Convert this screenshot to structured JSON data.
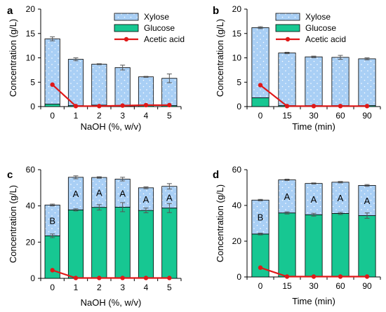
{
  "colors": {
    "xylose_fill": "#a9cff5",
    "xylose_dots": "#ffffff",
    "glucose_fill": "#17c792",
    "acetic_line": "#e01818",
    "bar_edge": "#000000",
    "error_bar": "#555555"
  },
  "chart_data": [
    {
      "type": "bar",
      "panel_letter": "a",
      "stacked": true,
      "categories": [
        "0",
        "1",
        "2",
        "3",
        "4",
        "5"
      ],
      "xlabel": "NaOH (%, w/v)",
      "ylabel": "Concentration (g/L)",
      "ylim": [
        0,
        20
      ],
      "yticks": [
        "0",
        "5",
        "10",
        "15",
        "20"
      ],
      "legend_position": "top-right",
      "series": [
        {
          "name": "Glucose",
          "kind": "bar",
          "values": [
            0.5,
            0.2,
            0.3,
            0.2,
            0.2,
            0.2
          ]
        },
        {
          "name": "Xylose",
          "kind": "bar",
          "values": [
            13.4,
            9.5,
            8.4,
            7.8,
            5.9,
            5.6
          ],
          "total_error": [
            0.4,
            0.3,
            0.1,
            0.5,
            0.1,
            0.9
          ]
        },
        {
          "name": "Acetic acid",
          "kind": "line",
          "values": [
            4.5,
            0.1,
            0.1,
            0.2,
            0.3,
            0.3
          ]
        }
      ],
      "bar_labels": []
    },
    {
      "type": "bar",
      "panel_letter": "b",
      "stacked": true,
      "categories": [
        "0",
        "15",
        "30",
        "60",
        "90"
      ],
      "xlabel": "Time (min)",
      "ylabel": "Concentration (g/L)",
      "ylim": [
        0,
        20
      ],
      "yticks": [
        "0",
        "5",
        "10",
        "15",
        "20"
      ],
      "legend_position": "top-right",
      "series": [
        {
          "name": "Glucose",
          "kind": "bar",
          "values": [
            1.8,
            0.2,
            0.2,
            0.2,
            0.2
          ]
        },
        {
          "name": "Xylose",
          "kind": "bar",
          "values": [
            14.4,
            10.8,
            10.0,
            9.9,
            9.6
          ],
          "total_error": [
            0.2,
            0.15,
            0.15,
            0.4,
            0.2
          ]
        },
        {
          "name": "Acetic acid",
          "kind": "line",
          "values": [
            4.4,
            0.1,
            0.1,
            0.1,
            0.1
          ]
        }
      ],
      "bar_labels": []
    },
    {
      "type": "bar",
      "panel_letter": "c",
      "stacked": true,
      "categories": [
        "0",
        "1",
        "2",
        "3",
        "4",
        "5"
      ],
      "xlabel": "NaOH (%, w/v)",
      "ylabel": "Concentration (g/L)",
      "ylim": [
        0,
        60
      ],
      "yticks": [
        "0",
        "20",
        "40",
        "60"
      ],
      "series": [
        {
          "name": "Glucose",
          "kind": "bar",
          "values": [
            23.5,
            37.8,
            39.2,
            39.3,
            37.5,
            38.8
          ],
          "error": [
            1.0,
            0.6,
            1.5,
            2.5,
            1.3,
            2.5
          ]
        },
        {
          "name": "Xylose",
          "kind": "bar",
          "values": [
            17.0,
            18.0,
            16.5,
            15.5,
            12.5,
            12.0
          ],
          "total_error": [
            0.5,
            0.8,
            0.4,
            1.0,
            0.5,
            1.5
          ]
        },
        {
          "name": "Acetic acid",
          "kind": "line",
          "values": [
            4.5,
            0.2,
            0.2,
            0.2,
            0.2,
            0.2
          ]
        }
      ],
      "bar_labels": [
        "B",
        "A",
        "A",
        "A",
        "A",
        "A"
      ]
    },
    {
      "type": "bar",
      "panel_letter": "d",
      "stacked": true,
      "categories": [
        "0",
        "15",
        "30",
        "60",
        "90"
      ],
      "xlabel": "Time (min)",
      "ylabel": "Concentration (g/L)",
      "ylim": [
        0,
        60
      ],
      "yticks": [
        "0",
        "20",
        "40",
        "60"
      ],
      "series": [
        {
          "name": "Glucose",
          "kind": "bar",
          "values": [
            24.0,
            35.8,
            34.8,
            35.5,
            34.3
          ],
          "error": [
            0.5,
            0.6,
            0.8,
            0.6,
            1.5
          ]
        },
        {
          "name": "Xylose",
          "kind": "bar",
          "values": [
            19.0,
            18.5,
            17.5,
            17.5,
            16.9
          ],
          "total_error": [
            0.4,
            0.4,
            0.3,
            0.4,
            0.5
          ]
        },
        {
          "name": "Acetic acid",
          "kind": "line",
          "values": [
            5.2,
            0.2,
            0.2,
            0.2,
            0.2
          ]
        }
      ],
      "bar_labels": [
        "B",
        "A",
        "A",
        "A",
        "A"
      ]
    }
  ]
}
